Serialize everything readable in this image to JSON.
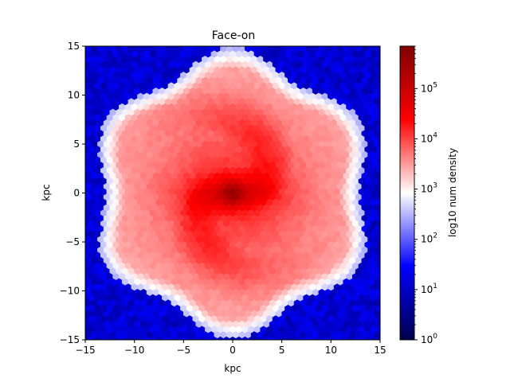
{
  "chart_data": {
    "type": "heatmap",
    "title": "Face-on",
    "xlabel": "kpc",
    "ylabel": "kpc",
    "xlim": [
      -15,
      15
    ],
    "ylim": [
      -15,
      15
    ],
    "xticks": [
      -15,
      -10,
      -5,
      0,
      5,
      10,
      15
    ],
    "yticks": [
      -15,
      -10,
      -5,
      0,
      5,
      10,
      15
    ],
    "xtick_labels": [
      "−15",
      "−10",
      "−5",
      "0",
      "5",
      "10",
      "15"
    ],
    "ytick_labels": [
      "−15",
      "−10",
      "−5",
      "0",
      "5",
      "10",
      "15"
    ],
    "grid": false,
    "bin_shape": "hexagon",
    "colormap": "seismic",
    "colorbar": {
      "label": "log10 num density",
      "scale": "log",
      "range": [
        1,
        700000
      ],
      "ticks": [
        {
          "value": 1,
          "base": "10",
          "exp": "0"
        },
        {
          "value": 10,
          "base": "10",
          "exp": "1"
        },
        {
          "value": 100,
          "base": "10",
          "exp": "2"
        },
        {
          "value": 1000,
          "base": "10",
          "exp": "3"
        },
        {
          "value": 10000,
          "base": "10",
          "exp": "4"
        },
        {
          "value": 100000,
          "base": "10",
          "exp": "5"
        }
      ]
    },
    "density_model": {
      "log10_peak": 5.6,
      "core_radius_kpc": 2.2,
      "bar_angle_deg": 0,
      "disk_log10_level": 3.7,
      "disk_edge_radius_kpc": 14.3,
      "outside_log10_level": 0.8
    }
  }
}
